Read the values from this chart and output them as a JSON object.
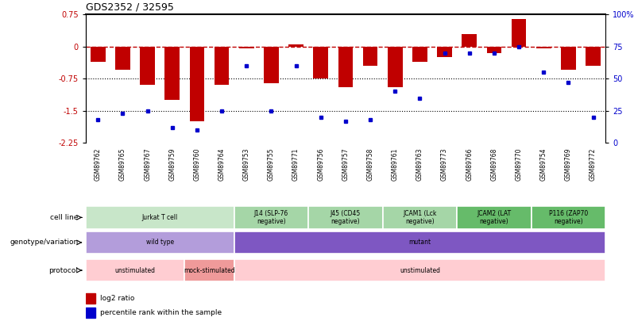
{
  "title": "GDS2352 / 32595",
  "samples": [
    "GSM89762",
    "GSM89765",
    "GSM89767",
    "GSM89759",
    "GSM89760",
    "GSM89764",
    "GSM89753",
    "GSM89755",
    "GSM89771",
    "GSM89756",
    "GSM89757",
    "GSM89758",
    "GSM89761",
    "GSM89763",
    "GSM89773",
    "GSM89766",
    "GSM89768",
    "GSM89770",
    "GSM89754",
    "GSM89769",
    "GSM89772"
  ],
  "log2_ratio": [
    -0.35,
    -0.55,
    -0.9,
    -1.25,
    -1.75,
    -0.9,
    -0.05,
    -0.85,
    0.05,
    -0.75,
    -0.95,
    -0.45,
    -0.95,
    -0.35,
    -0.25,
    0.3,
    -0.15,
    0.65,
    -0.05,
    -0.55,
    -0.45
  ],
  "percentile": [
    18,
    23,
    25,
    12,
    10,
    25,
    60,
    25,
    60,
    20,
    17,
    18,
    40,
    35,
    70,
    70,
    70,
    75,
    55,
    47,
    20
  ],
  "ylim_left": [
    -2.25,
    0.75
  ],
  "ylim_right": [
    0,
    100
  ],
  "hline_0": 0,
  "hlines_dotted": [
    -0.75,
    -1.5
  ],
  "bar_color": "#c00000",
  "dot_color": "#0000cc",
  "hline_color": "#c00000",
  "cell_line_groups": [
    {
      "label": "Jurkat T cell",
      "start": 0,
      "end": 6,
      "color": "#c8e6c9"
    },
    {
      "label": "J14 (SLP-76\nnegative)",
      "start": 6,
      "end": 9,
      "color": "#a5d6a7"
    },
    {
      "label": "J45 (CD45\nnegative)",
      "start": 9,
      "end": 12,
      "color": "#a5d6a7"
    },
    {
      "label": "JCAM1 (Lck\nnegative)",
      "start": 12,
      "end": 15,
      "color": "#a5d6a7"
    },
    {
      "label": "JCAM2 (LAT\nnegative)",
      "start": 15,
      "end": 18,
      "color": "#66bb6a"
    },
    {
      "label": "P116 (ZAP70\nnegative)",
      "start": 18,
      "end": 21,
      "color": "#66bb6a"
    }
  ],
  "genotype_groups": [
    {
      "label": "wild type",
      "start": 0,
      "end": 6,
      "color": "#b39ddb"
    },
    {
      "label": "mutant",
      "start": 6,
      "end": 21,
      "color": "#7e57c2"
    }
  ],
  "protocol_groups": [
    {
      "label": "unstimulated",
      "start": 0,
      "end": 4,
      "color": "#ffcdd2"
    },
    {
      "label": "mock-stimulated",
      "start": 4,
      "end": 6,
      "color": "#ef9a9a"
    },
    {
      "label": "unstimulated",
      "start": 6,
      "end": 21,
      "color": "#ffcdd2"
    }
  ],
  "row_labels": [
    "cell line",
    "genotype/variation",
    "protocol"
  ],
  "legend_bar_label": "log2 ratio",
  "legend_dot_label": "percentile rank within the sample"
}
